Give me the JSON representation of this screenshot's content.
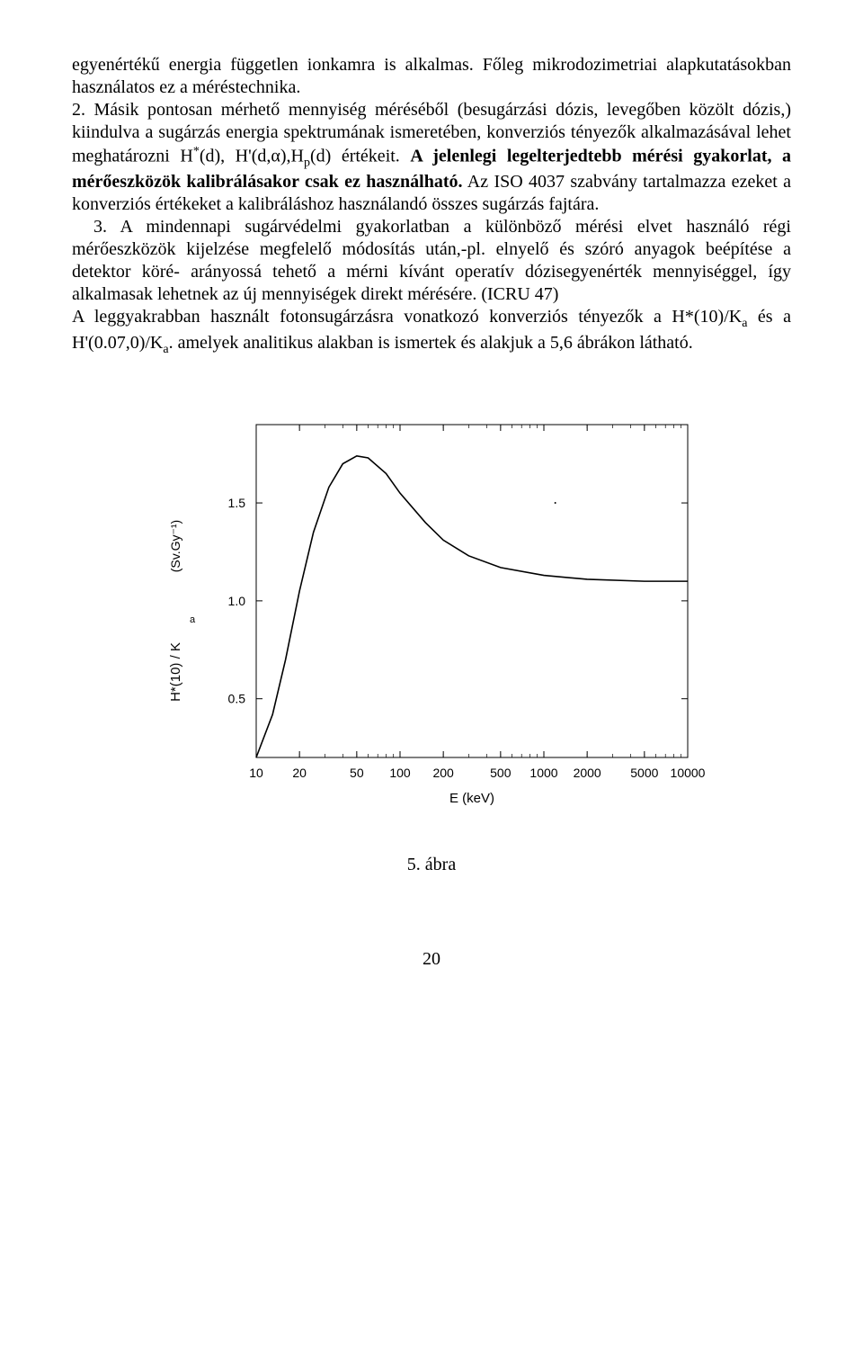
{
  "text": {
    "p1": "egyenértékű energia független ionkamra is alkalmas. Főleg mikrodozimetriai alapkutatásokban használatos ez a méréstechnika.",
    "p2a": "2. Másik pontosan mérhető mennyiség méréséből (besugárzási dózis, levegőben közölt dózis,) kiindulva a sugárzás energia spektrumának ismeretében, konverziós tényezők alkalmazásával lehet meghatározni H",
    "p2sup": "*",
    "p2b": "(d), H'(d,α),H",
    "p2sub": "p",
    "p2c": "(d) értékeit. ",
    "p2bold": "A jelenlegi legelterjedtebb mérési gyakorlat, a mérőeszközök kalibrálásakor csak ez használható.",
    "p2d": " Az ISO 4037 szabvány tartalmazza ezeket a konverziós értékeket a kalibráláshoz használandó összes sugárzás fajtára.",
    "p3": "3. A mindennapi sugárvédelmi gyakorlatban a különböző mérési elvet használó régi mérőeszközök kijelzése megfelelő módosítás után,-pl. elnyelő és szóró anyagok beépítése a detektor köré- arányossá tehető a mérni kívánt operatív dózisegyenérték mennyiséggel, így alkalmasak lehetnek  az új mennyiségek direkt mérésére. (ICRU 47)",
    "p4a": "A leggyakrabban használt  fotonsugárzásra vonatkozó konverziós tényezők  a H*(10)/K",
    "p4sub1": "a",
    "p4b": " és a H'(0.07,0)/K",
    "p4sub2": "a",
    "p4c": ". amelyek analitikus alakban is ismertek és alakjuk  a 5,6 ábrákon látható.",
    "caption": "5. ábra",
    "pagenum": "20"
  },
  "chart": {
    "type": "line",
    "xlabel": "E  (keV)",
    "ylabel_top": "(Sv.Gy⁻¹)",
    "ylabel_mid_a": "a",
    "ylabel_bottom": "H*(10) / K",
    "x_scale": "log",
    "x_ticks": [
      10,
      20,
      50,
      100,
      200,
      500,
      1000,
      2000,
      5000,
      10000
    ],
    "y_scale": "linear",
    "y_ticks": [
      0.5,
      1.0,
      1.5
    ],
    "xlim": [
      10,
      10000
    ],
    "ylim": [
      0.2,
      1.9
    ],
    "line_color": "#000000",
    "line_width": 1.6,
    "axis_color": "#000000",
    "background_color": "#ffffff",
    "tick_fontsize": 14,
    "label_fontsize": 15,
    "data": [
      {
        "x": 10,
        "y": 0.2
      },
      {
        "x": 13,
        "y": 0.42
      },
      {
        "x": 16,
        "y": 0.7
      },
      {
        "x": 20,
        "y": 1.05
      },
      {
        "x": 25,
        "y": 1.35
      },
      {
        "x": 32,
        "y": 1.58
      },
      {
        "x": 40,
        "y": 1.7
      },
      {
        "x": 50,
        "y": 1.74
      },
      {
        "x": 60,
        "y": 1.73
      },
      {
        "x": 80,
        "y": 1.65
      },
      {
        "x": 100,
        "y": 1.55
      },
      {
        "x": 150,
        "y": 1.4
      },
      {
        "x": 200,
        "y": 1.31
      },
      {
        "x": 300,
        "y": 1.23
      },
      {
        "x": 500,
        "y": 1.17
      },
      {
        "x": 1000,
        "y": 1.13
      },
      {
        "x": 2000,
        "y": 1.11
      },
      {
        "x": 5000,
        "y": 1.1
      },
      {
        "x": 10000,
        "y": 1.1
      }
    ]
  }
}
